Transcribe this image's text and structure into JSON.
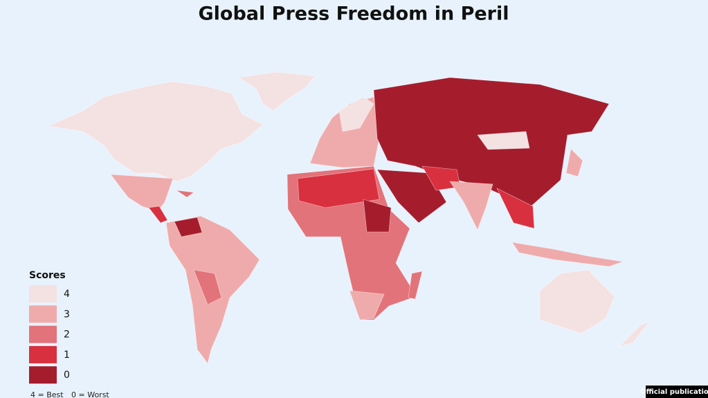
{
  "title": "Global Press Freedom in Peril",
  "legend": {
    "title": "Scores",
    "items": [
      {
        "label": "4",
        "color": "#f4e1e2"
      },
      {
        "label": "3",
        "color": "#efabab"
      },
      {
        "label": "2",
        "color": "#e2737a"
      },
      {
        "label": "1",
        "color": "#d9303f"
      },
      {
        "label": "0",
        "color": "#a51d2d"
      }
    ]
  },
  "footnote": [
    "4 = Best",
    "0 = Worst"
  ],
  "badge": "Official publication"
}
